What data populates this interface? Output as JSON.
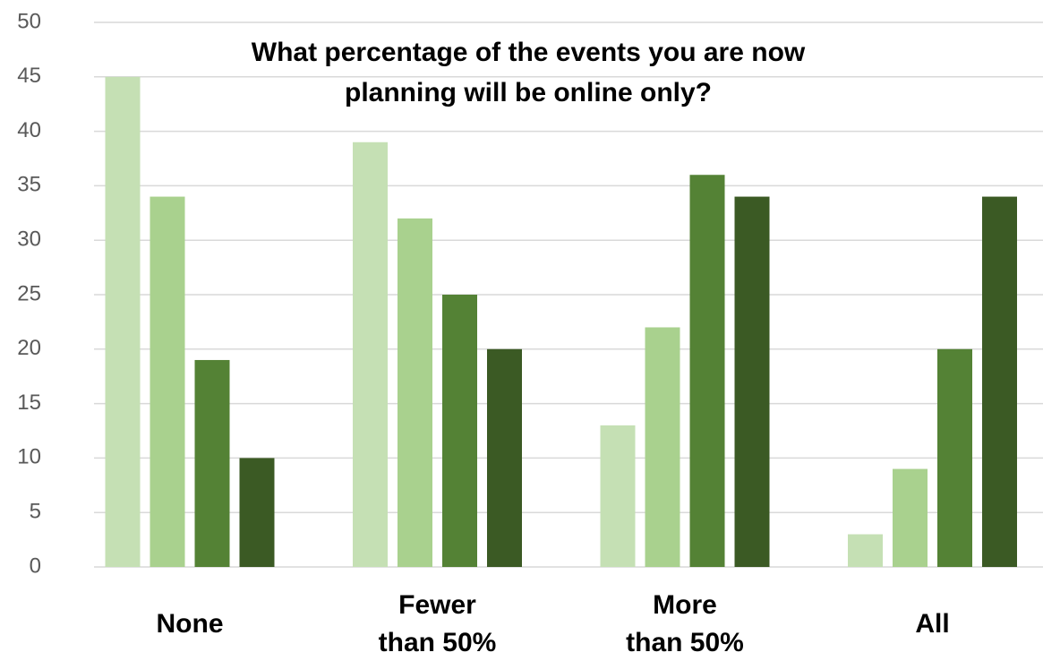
{
  "chart_data": {
    "type": "bar",
    "title": "What percentage of the events you are now planning will be online only?",
    "categories": [
      "None",
      "Fewer than 50%",
      "More than 50%",
      "All"
    ],
    "series": [
      {
        "color": "#c5e0b4",
        "values": [
          45,
          39,
          13,
          3
        ]
      },
      {
        "color": "#a9d18e",
        "values": [
          34,
          32,
          22,
          9
        ]
      },
      {
        "color": "#548235",
        "values": [
          19,
          25,
          36,
          20
        ]
      },
      {
        "color": "#3b5a24",
        "values": [
          10,
          20,
          34,
          34
        ]
      }
    ],
    "ylim": [
      0,
      50
    ],
    "yticks": [
      0,
      5,
      10,
      15,
      20,
      25,
      30,
      35,
      40,
      45,
      50
    ],
    "grid": true
  }
}
